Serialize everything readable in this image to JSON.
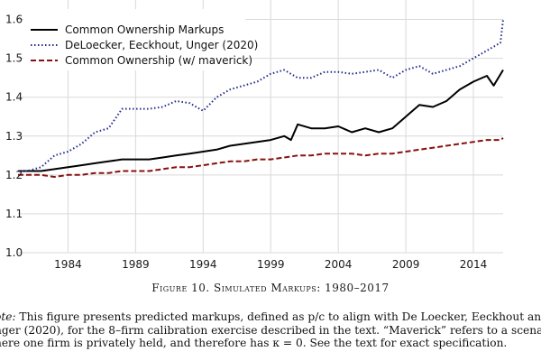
{
  "chart_data": {
    "type": "line",
    "title": "",
    "xlabel": "",
    "ylabel": "",
    "xlim": [
      1980.3,
      2016.2
    ],
    "ylim": [
      1.0,
      1.65
    ],
    "y_ticks": [
      1.0,
      1.1,
      1.2,
      1.3,
      1.4,
      1.5,
      1.6
    ],
    "y_tick_labels": [
      "1.0",
      "1.1",
      "1.2",
      "1.3",
      "1.4",
      "1.5",
      "1.6"
    ],
    "x_ticks": [
      1984,
      1989,
      1994,
      1999,
      2004,
      2009,
      2014
    ],
    "x_tick_labels": [
      "1984",
      "1989",
      "1994",
      "1999",
      "2004",
      "2009",
      "2014"
    ],
    "grid": true,
    "legend_position": "top-left",
    "series": [
      {
        "name": "Common Ownership Markups",
        "color": "#000000",
        "style": "solid",
        "x": [
          1980.3,
          1981,
          1982,
          1983,
          1984,
          1985,
          1986,
          1987,
          1988,
          1989,
          1990,
          1991,
          1992,
          1993,
          1994,
          1995,
          1996,
          1997,
          1998,
          1999,
          2000,
          2000.5,
          2001,
          2002,
          2003,
          2004,
          2005,
          2006,
          2007,
          2008,
          2009,
          2010,
          2011,
          2012,
          2013,
          2014,
          2015,
          2015.5,
          2016.2
        ],
        "y": [
          1.21,
          1.21,
          1.21,
          1.215,
          1.22,
          1.225,
          1.23,
          1.235,
          1.24,
          1.24,
          1.24,
          1.245,
          1.25,
          1.255,
          1.26,
          1.265,
          1.275,
          1.28,
          1.285,
          1.29,
          1.3,
          1.29,
          1.33,
          1.32,
          1.32,
          1.325,
          1.31,
          1.32,
          1.31,
          1.32,
          1.35,
          1.38,
          1.375,
          1.39,
          1.42,
          1.44,
          1.455,
          1.43,
          1.47
        ]
      },
      {
        "name": "DeLoecker, Eeckhout, Unger (2020)",
        "color": "#1f2a8a",
        "style": "dotted",
        "x": [
          1980.3,
          1981,
          1982,
          1983,
          1984,
          1985,
          1986,
          1987,
          1988,
          1989,
          1990,
          1991,
          1992,
          1993,
          1994,
          1995,
          1996,
          1997,
          1998,
          1999,
          2000,
          2001,
          2002,
          2003,
          2004,
          2005,
          2006,
          2007,
          2008,
          2009,
          2010,
          2011,
          2012,
          2013,
          2014,
          2015,
          2016,
          2016.2
        ],
        "y": [
          1.21,
          1.21,
          1.22,
          1.25,
          1.26,
          1.28,
          1.31,
          1.32,
          1.37,
          1.37,
          1.37,
          1.375,
          1.39,
          1.385,
          1.365,
          1.4,
          1.42,
          1.43,
          1.44,
          1.46,
          1.47,
          1.45,
          1.45,
          1.465,
          1.465,
          1.46,
          1.465,
          1.47,
          1.45,
          1.47,
          1.48,
          1.46,
          1.47,
          1.48,
          1.5,
          1.52,
          1.54,
          1.6
        ]
      },
      {
        "name": "Common Ownership (w/ maverick)",
        "color": "#8a1010",
        "style": "dashed",
        "x": [
          1980.3,
          1981,
          1982,
          1983,
          1984,
          1985,
          1986,
          1987,
          1988,
          1989,
          1990,
          1991,
          1992,
          1993,
          1994,
          1995,
          1996,
          1997,
          1998,
          1999,
          2000,
          2001,
          2002,
          2003,
          2004,
          2005,
          2006,
          2007,
          2008,
          2009,
          2010,
          2011,
          2012,
          2013,
          2014,
          2015,
          2016,
          2016.2
        ],
        "y": [
          1.2,
          1.2,
          1.2,
          1.195,
          1.2,
          1.2,
          1.205,
          1.205,
          1.21,
          1.21,
          1.21,
          1.215,
          1.22,
          1.22,
          1.225,
          1.23,
          1.235,
          1.235,
          1.24,
          1.24,
          1.245,
          1.25,
          1.25,
          1.255,
          1.255,
          1.255,
          1.25,
          1.255,
          1.255,
          1.26,
          1.265,
          1.27,
          1.275,
          1.28,
          1.285,
          1.29,
          1.29,
          1.295
        ]
      }
    ]
  },
  "caption": "Figure 10. Simulated Markups: 1980–2017",
  "note": {
    "lead": "ote:",
    "lines": [
      " This figure presents predicted markups, defined as p/c to align with De Loecker, Eeckhout and",
      "nger (2020), for the 8–firm calibration exercise described in the text.  “Maverick” refers to a scenario",
      "here one firm is privately held, and therefore has κ = 0. See the text for exact specification."
    ]
  }
}
